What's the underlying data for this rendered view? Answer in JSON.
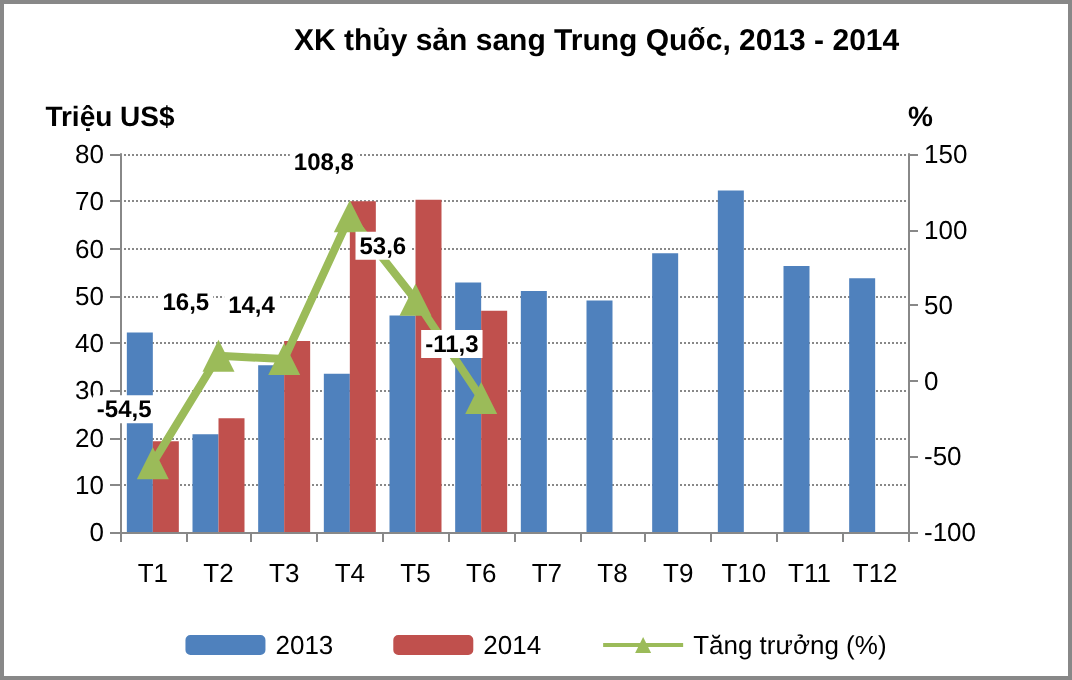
{
  "chart_data": {
    "type": "bar",
    "title": "XK thủy sản sang Trung Quốc, 2013 - 2014",
    "ylabel": "Triệu US$",
    "y2label": "%",
    "categories": [
      "T1",
      "T2",
      "T3",
      "T4",
      "T5",
      "T6",
      "T7",
      "T8",
      "T9",
      "T10",
      "T11",
      "T12"
    ],
    "series": [
      {
        "name": "2013",
        "color": "#4f81bd",
        "values": [
          42.2,
          20.7,
          35.3,
          33.5,
          45.8,
          52.8,
          51,
          49,
          59,
          72.3,
          56.3,
          53.7
        ]
      },
      {
        "name": "2014",
        "color": "#c0504d",
        "values": [
          19.2,
          24.1,
          40.4,
          70,
          70.3,
          46.8,
          null,
          null,
          null,
          null,
          null,
          null
        ]
      },
      {
        "name": "Tăng trưởng (%)",
        "type": "line",
        "axis": "y2",
        "color": "#9bbb59",
        "marker": "triangle",
        "value_labels": [
          "-54,5",
          "16,5",
          "14,4",
          "108,8",
          "53,6",
          "-11,3",
          null,
          null,
          null,
          null,
          null,
          null
        ],
        "values": [
          -54.5,
          16.5,
          14.4,
          108.8,
          53.6,
          -11.3,
          null,
          null,
          null,
          null,
          null,
          null
        ]
      }
    ],
    "ylim": [
      0,
      80
    ],
    "yticks": [
      0,
      10,
      20,
      30,
      40,
      50,
      60,
      70,
      80
    ],
    "y2lim": [
      -100,
      150
    ],
    "y2ticks": [
      -100,
      -50,
      0,
      50,
      100,
      150
    ],
    "grid": "y",
    "legend": "bottom"
  }
}
